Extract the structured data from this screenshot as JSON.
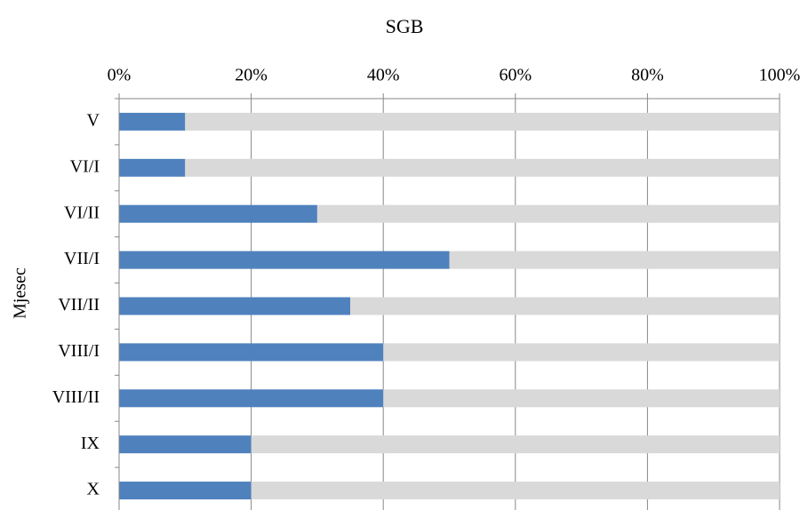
{
  "chart_data": {
    "type": "stacked-bar-horizontal",
    "title": "SGB",
    "y_label": "Mjesec",
    "categories": [
      "V",
      "VI/I",
      "VI/II",
      "VII/I",
      "VII/II",
      "VIII/I",
      "VIII/II",
      "IX",
      "X"
    ],
    "series": [
      {
        "color": "#4f81bd",
        "values": [
          10,
          10,
          30,
          50,
          35,
          40,
          40,
          20,
          20
        ]
      },
      {
        "color": "#d9d9d9",
        "values": [
          90,
          90,
          70,
          50,
          65,
          60,
          60,
          80,
          80
        ]
      }
    ],
    "xlim": [
      0,
      100
    ],
    "xticks": [
      {
        "value": 0,
        "label": "0%"
      },
      {
        "value": 20,
        "label": "20%"
      },
      {
        "value": 40,
        "label": "40%"
      },
      {
        "value": 60,
        "label": "60%"
      },
      {
        "value": 80,
        "label": "80%"
      },
      {
        "value": 100,
        "label": "100%"
      }
    ],
    "grid": true
  }
}
